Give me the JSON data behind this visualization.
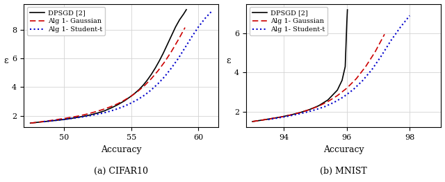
{
  "cifar10": {
    "xlabel": "Accuracy",
    "ylabel": "ε",
    "subtitle": "(a) CIFAR10",
    "xlim": [
      47.0,
      61.5
    ],
    "ylim": [
      1.2,
      9.8
    ],
    "xticks": [
      50,
      55,
      60
    ],
    "yticks": [
      2,
      4,
      6,
      8
    ],
    "dpsgd": {
      "acc": [
        47.5,
        48.0,
        48.5,
        49.0,
        49.5,
        50.0,
        50.5,
        51.0,
        51.5,
        52.0,
        52.5,
        53.0,
        53.5,
        54.0,
        54.5,
        55.0,
        55.3,
        55.6,
        55.9,
        56.2,
        56.5,
        56.8,
        57.1,
        57.4,
        57.7,
        58.0,
        58.3,
        58.6,
        58.9,
        59.1
      ],
      "eps": [
        1.5,
        1.55,
        1.6,
        1.65,
        1.7,
        1.75,
        1.82,
        1.9,
        1.98,
        2.08,
        2.2,
        2.35,
        2.55,
        2.78,
        3.05,
        3.38,
        3.6,
        3.85,
        4.15,
        4.5,
        4.9,
        5.35,
        5.85,
        6.4,
        7.0,
        7.6,
        8.2,
        8.7,
        9.1,
        9.4
      ]
    },
    "gaussian": {
      "acc": [
        47.5,
        48.0,
        48.5,
        49.0,
        49.5,
        50.0,
        50.5,
        51.0,
        51.5,
        52.0,
        52.5,
        53.0,
        53.5,
        54.0,
        54.5,
        55.0,
        55.5,
        56.0,
        56.5,
        57.0,
        57.5,
        58.0,
        58.5,
        59.0
      ],
      "eps": [
        1.5,
        1.55,
        1.62,
        1.68,
        1.75,
        1.82,
        1.9,
        1.98,
        2.08,
        2.2,
        2.33,
        2.48,
        2.65,
        2.85,
        3.1,
        3.38,
        3.72,
        4.12,
        4.6,
        5.15,
        5.78,
        6.5,
        7.3,
        8.15
      ]
    },
    "student_t": {
      "acc": [
        48.5,
        49.0,
        49.5,
        50.0,
        50.5,
        51.0,
        51.5,
        52.0,
        52.5,
        53.0,
        53.5,
        54.0,
        54.5,
        55.0,
        55.5,
        56.0,
        56.5,
        57.0,
        57.5,
        58.0,
        58.5,
        59.0,
        59.5,
        60.0,
        60.5,
        61.0
      ],
      "eps": [
        1.6,
        1.65,
        1.7,
        1.75,
        1.82,
        1.88,
        1.95,
        2.03,
        2.12,
        2.22,
        2.35,
        2.5,
        2.68,
        2.9,
        3.15,
        3.45,
        3.82,
        4.25,
        4.75,
        5.35,
        6.0,
        6.75,
        7.5,
        8.2,
        8.8,
        9.3
      ]
    }
  },
  "mnist": {
    "xlabel": "Accuracy",
    "ylabel": "ε",
    "subtitle": "(b) MNIST",
    "xlim": [
      92.8,
      99.0
    ],
    "ylim": [
      1.2,
      7.5
    ],
    "xticks": [
      94,
      96,
      98
    ],
    "yticks": [
      2,
      4,
      6
    ],
    "dpsgd": {
      "acc": [
        93.0,
        93.3,
        93.6,
        93.9,
        94.2,
        94.5,
        94.8,
        95.1,
        95.4,
        95.7,
        95.85,
        95.95,
        96.0,
        96.02
      ],
      "eps": [
        1.5,
        1.57,
        1.65,
        1.73,
        1.83,
        1.95,
        2.1,
        2.3,
        2.6,
        3.1,
        3.6,
        4.3,
        6.5,
        7.2
      ]
    },
    "gaussian": {
      "acc": [
        93.0,
        93.3,
        93.6,
        93.9,
        94.2,
        94.5,
        94.8,
        95.1,
        95.4,
        95.7,
        96.0,
        96.3,
        96.6,
        96.9,
        97.2
      ],
      "eps": [
        1.5,
        1.57,
        1.65,
        1.73,
        1.83,
        1.95,
        2.1,
        2.28,
        2.52,
        2.82,
        3.2,
        3.68,
        4.3,
        5.05,
        5.95
      ]
    },
    "student_t": {
      "acc": [
        93.5,
        93.8,
        94.1,
        94.4,
        94.7,
        95.0,
        95.3,
        95.6,
        95.9,
        96.2,
        96.5,
        96.8,
        97.1,
        97.4,
        97.7,
        98.0
      ],
      "eps": [
        1.6,
        1.68,
        1.76,
        1.86,
        1.97,
        2.1,
        2.26,
        2.48,
        2.76,
        3.12,
        3.58,
        4.15,
        4.85,
        5.62,
        6.3,
        6.9
      ]
    }
  },
  "legend": {
    "dpsgd_label": "DPSGD [2]",
    "gaussian_label": "Alg 1- Gaussian",
    "student_t_label": "Alg 1- Student-t",
    "dpsgd_color": "#000000",
    "gaussian_color": "#cc0000",
    "student_t_color": "#0000cc"
  }
}
